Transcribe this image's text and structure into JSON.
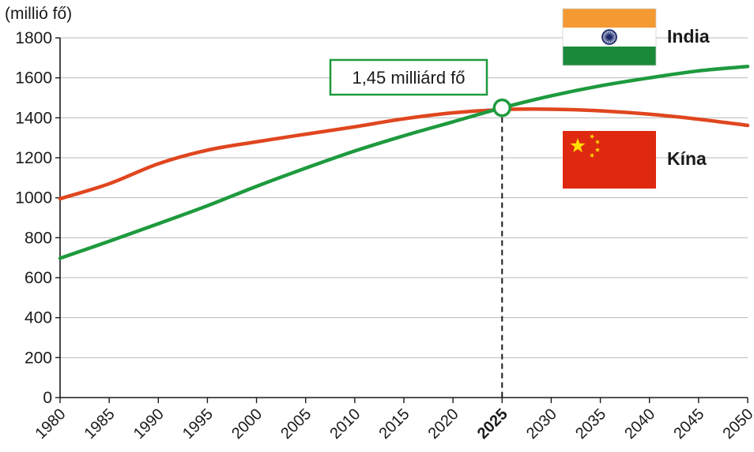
{
  "chart_data": {
    "type": "line",
    "unit_label": "(millió fő)",
    "ylim": [
      0,
      1800
    ],
    "y_ticks": [
      0,
      200,
      400,
      600,
      800,
      1000,
      1200,
      1400,
      1600,
      1800
    ],
    "x": [
      1980,
      1985,
      1990,
      1995,
      2000,
      2005,
      2010,
      2015,
      2020,
      2025,
      2030,
      2035,
      2040,
      2045,
      2050
    ],
    "x_tick_labels": [
      "1980",
      "1985",
      "1990",
      "1995",
      "2000",
      "2005",
      "2010",
      "2015",
      "2020",
      "2025",
      "2030",
      "2035",
      "2040",
      "2045",
      "2050"
    ],
    "highlight_year": 2025,
    "grid": true,
    "series": [
      {
        "name": "India",
        "color": "#1e9a3e",
        "flag": "india-flag",
        "values": [
          697,
          782,
          870,
          960,
          1057,
          1148,
          1234,
          1310,
          1380,
          1450,
          1510,
          1560,
          1600,
          1635,
          1657
        ]
      },
      {
        "name": "Kína",
        "color": "#e0461f",
        "flag": "china-flag",
        "values": [
          995,
          1070,
          1170,
          1238,
          1280,
          1318,
          1355,
          1395,
          1425,
          1441,
          1443,
          1435,
          1418,
          1393,
          1362
        ]
      }
    ],
    "annotation": {
      "text": "1,45 milliárd fő",
      "x": 2025,
      "y": 1450
    }
  }
}
